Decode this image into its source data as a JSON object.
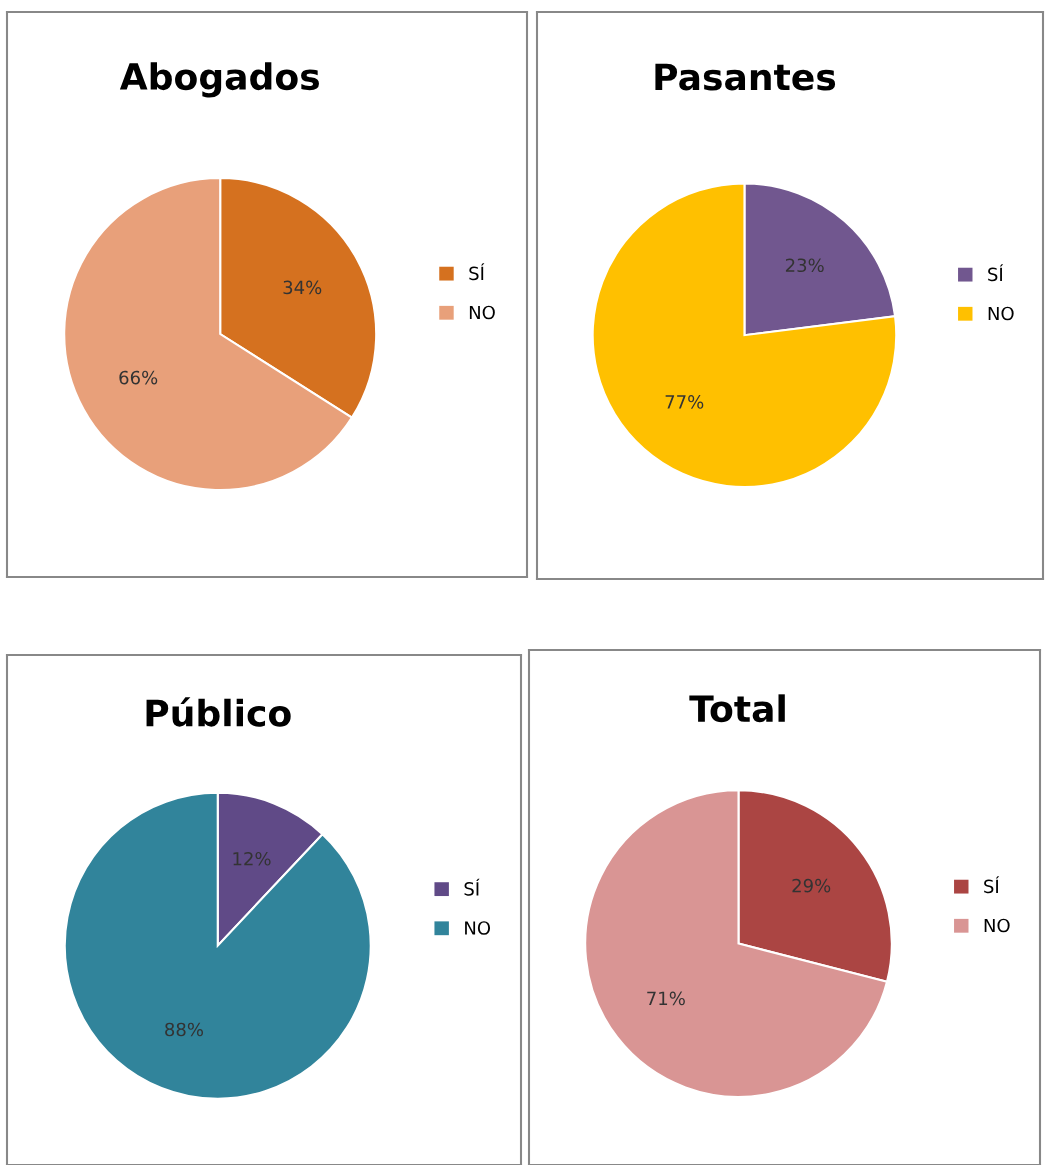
{
  "chart_data": [
    {
      "type": "pie",
      "title": "Abogados",
      "categories": [
        "SÍ",
        "NO"
      ],
      "values": [
        34,
        66
      ],
      "colors": [
        "#d5711f",
        "#e8a07a"
      ],
      "value_labels": [
        "34%",
        "66%"
      ],
      "legend": "right"
    },
    {
      "type": "pie",
      "title": "Pasantes",
      "categories": [
        "SÍ",
        "NO"
      ],
      "values": [
        23,
        77
      ],
      "colors": [
        "#71578f",
        "#ffc000"
      ],
      "value_labels": [
        "23%",
        "77%"
      ],
      "legend": "right"
    },
    {
      "type": "pie",
      "title": "Público",
      "categories": [
        "SÍ",
        "NO"
      ],
      "values": [
        12,
        88
      ],
      "colors": [
        "#604a87",
        "#31849b"
      ],
      "value_labels": [
        "12%",
        "88%"
      ],
      "legend": "right"
    },
    {
      "type": "pie",
      "title": "Total",
      "categories": [
        "SÍ",
        "NO"
      ],
      "values": [
        29,
        71
      ],
      "colors": [
        "#ab4543",
        "#d99594"
      ],
      "value_labels": [
        "29%",
        "71%"
      ],
      "legend": "right"
    }
  ]
}
